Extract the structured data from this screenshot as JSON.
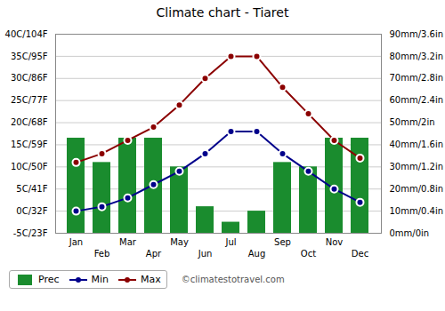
{
  "chart_data": {
    "type": "bar",
    "title": "Climate chart - Tiaret",
    "categories": [
      "Jan",
      "Feb",
      "Mar",
      "Apr",
      "May",
      "Jun",
      "Jul",
      "Aug",
      "Sep",
      "Oct",
      "Nov",
      "Dec"
    ],
    "series": [
      {
        "name": "Prec",
        "type": "bar",
        "axis": "y2",
        "color": "#1a8c2e",
        "values": [
          43,
          32,
          43,
          43,
          30,
          12,
          5,
          10,
          32,
          30,
          43,
          43
        ]
      },
      {
        "name": "Min",
        "type": "line",
        "marker": "circle",
        "color": "#00008B",
        "values": [
          0,
          1,
          3,
          6,
          9,
          13,
          18,
          18,
          13,
          9,
          5,
          2
        ]
      },
      {
        "name": "Max",
        "type": "line",
        "marker": "circle",
        "color": "#8B0000",
        "values": [
          11,
          13,
          16,
          19,
          24,
          30,
          35,
          35,
          28,
          22,
          16,
          12
        ]
      }
    ],
    "ylim": [
      -5,
      40
    ],
    "yticks": [
      {
        "value": -5,
        "label": "-5C/23F"
      },
      {
        "value": 0,
        "label": "0C/32F"
      },
      {
        "value": 5,
        "label": "5C/41F"
      },
      {
        "value": 10,
        "label": "10C/50F"
      },
      {
        "value": 15,
        "label": "15C/59F"
      },
      {
        "value": 20,
        "label": "20C/68F"
      },
      {
        "value": 25,
        "label": "25C/77F"
      },
      {
        "value": 30,
        "label": "30C/86F"
      },
      {
        "value": 35,
        "label": "35C/95F"
      },
      {
        "value": 40,
        "label": "40C/104F"
      }
    ],
    "y2lim": [
      0,
      90
    ],
    "y2ticks": [
      {
        "value": 0,
        "label": "0mm/0in"
      },
      {
        "value": 10,
        "label": "10mm/0.4in"
      },
      {
        "value": 20,
        "label": "20mm/0.8in"
      },
      {
        "value": 30,
        "label": "30mm/1.2in"
      },
      {
        "value": 40,
        "label": "40mm/1.6in"
      },
      {
        "value": 50,
        "label": "50mm/2in"
      },
      {
        "value": 60,
        "label": "60mm/2.4in"
      },
      {
        "value": 70,
        "label": "70mm/2.8in"
      },
      {
        "value": 80,
        "label": "80mm/3.2in"
      },
      {
        "value": 90,
        "label": "90mm/3.6in"
      }
    ],
    "grid": true,
    "legend": "lower left",
    "annotations": [
      "©climatestotravel.com"
    ]
  }
}
